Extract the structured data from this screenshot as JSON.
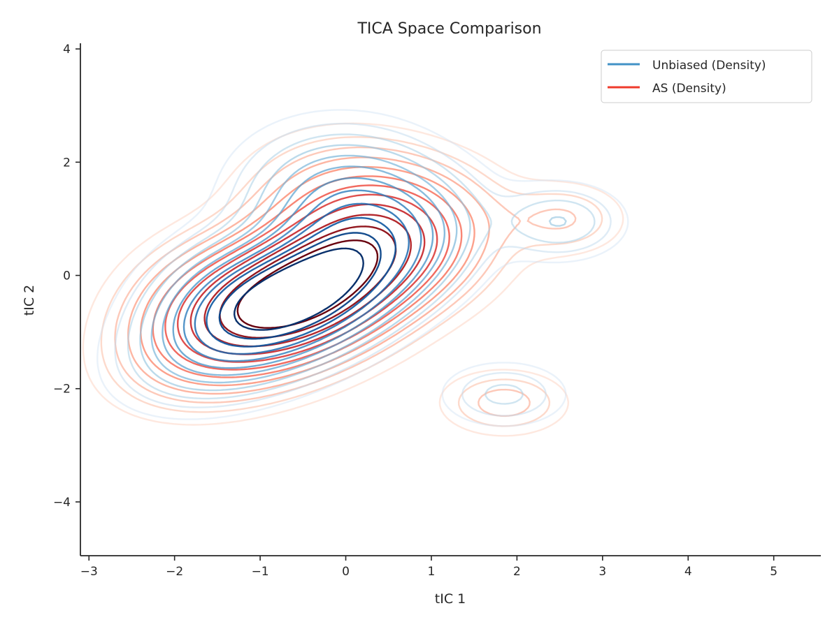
{
  "chart_data": {
    "type": "contour",
    "title": "TICA Space Comparison",
    "xlabel": "tIC 1",
    "ylabel": "tIC 2",
    "xlim": [
      -3.1,
      5.55
    ],
    "ylim": [
      -4.95,
      4.1
    ],
    "xticks": [
      -3,
      -2,
      -1,
      0,
      1,
      2,
      3,
      4,
      5
    ],
    "yticks": [
      -4,
      -2,
      0,
      2,
      4
    ],
    "xtick_labels": [
      "−3",
      "−2",
      "−1",
      "0",
      "1",
      "2",
      "3",
      "4",
      "5"
    ],
    "ytick_labels": [
      "−4",
      "−2",
      "0",
      "2",
      "4"
    ],
    "grid": false,
    "legend_position": "top-right",
    "series": [
      {
        "name": "Unbiased (Density)",
        "color": "#4292c6",
        "colormap": "Blues",
        "modes": [
          {
            "center": [
              -0.55,
              -0.35
            ],
            "sx": 0.85,
            "sy": 0.8,
            "rho": 0.55,
            "weight": 1.0
          },
          {
            "center": [
              0.1,
              1.2
            ],
            "sx": 0.7,
            "sy": 0.75,
            "rho": -0.1,
            "weight": 0.35
          },
          {
            "center": [
              2.5,
              0.95
            ],
            "sx": 0.45,
            "sy": 0.4,
            "rho": 0.0,
            "weight": 0.12
          },
          {
            "center": [
              1.85,
              -2.1
            ],
            "sx": 0.45,
            "sy": 0.35,
            "rho": 0.0,
            "weight": 0.09
          },
          {
            "center": [
              -1.5,
              -0.4
            ],
            "sx": 0.55,
            "sy": 0.7,
            "rho": 0.2,
            "weight": 0.15
          }
        ]
      },
      {
        "name": "AS (Density)",
        "color": "#ef3b2c",
        "colormap": "Reds",
        "modes": [
          {
            "center": [
              -0.5,
              -0.3
            ],
            "sx": 0.9,
            "sy": 0.85,
            "rho": 0.5,
            "weight": 1.0
          },
          {
            "center": [
              0.3,
              1.0
            ],
            "sx": 0.75,
            "sy": 0.75,
            "rho": -0.15,
            "weight": 0.3
          },
          {
            "center": [
              2.55,
              1.0
            ],
            "sx": 0.45,
            "sy": 0.4,
            "rho": 0.0,
            "weight": 0.08
          },
          {
            "center": [
              1.85,
              -2.25
            ],
            "sx": 0.45,
            "sy": 0.35,
            "rho": 0.0,
            "weight": 0.1
          },
          {
            "center": [
              -1.7,
              -0.5
            ],
            "sx": 0.6,
            "sy": 0.75,
            "rho": 0.2,
            "weight": 0.14
          }
        ]
      }
    ],
    "contour_levels": [
      0.025,
      0.05,
      0.08,
      0.12,
      0.17,
      0.23,
      0.3,
      0.38,
      0.47,
      0.57,
      0.68,
      0.8
    ]
  }
}
